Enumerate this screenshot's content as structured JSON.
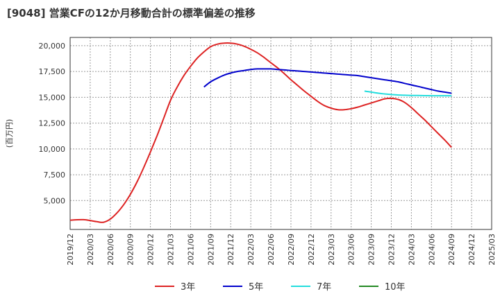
{
  "chart_data": {
    "type": "line",
    "title": "[9048]  営業CFの12か月移動合計の標準偏差の推移",
    "ylabel": "(百万円)",
    "xlabel": "",
    "ylim": [
      2200,
      20800
    ],
    "yticks": [
      5000,
      7500,
      10000,
      12500,
      15000,
      17500,
      20000
    ],
    "ytick_labels": [
      "5,000",
      "7,500",
      "10,000",
      "12,500",
      "15,000",
      "17,500",
      "20,000"
    ],
    "xticks": [
      "2019/12",
      "2020/03",
      "2020/06",
      "2020/09",
      "2020/12",
      "2021/03",
      "2021/06",
      "2021/09",
      "2021/12",
      "2022/03",
      "2022/06",
      "2022/09",
      "2022/12",
      "2023/03",
      "2023/06",
      "2023/09",
      "2023/12",
      "2024/03",
      "2024/06",
      "2024/09",
      "2024/12",
      "2025/03"
    ],
    "grid": true,
    "legend_position": "bottom",
    "series": [
      {
        "name": "3年",
        "color": "#dd2222",
        "points": [
          [
            "2019/12",
            3100
          ],
          [
            "2020/02",
            3150
          ],
          [
            "2020/04",
            2950
          ],
          [
            "2020/05",
            2900
          ],
          [
            "2020/06",
            3200
          ],
          [
            "2020/07",
            3800
          ],
          [
            "2020/08",
            4600
          ],
          [
            "2020/09",
            5600
          ],
          [
            "2020/10",
            6800
          ],
          [
            "2020/11",
            8200
          ],
          [
            "2020/12",
            9700
          ],
          [
            "2021/01",
            11300
          ],
          [
            "2021/02",
            13000
          ],
          [
            "2021/03",
            14700
          ],
          [
            "2021/04",
            16000
          ],
          [
            "2021/05",
            17100
          ],
          [
            "2021/06",
            18000
          ],
          [
            "2021/07",
            18800
          ],
          [
            "2021/08",
            19400
          ],
          [
            "2021/09",
            19900
          ],
          [
            "2021/10",
            20150
          ],
          [
            "2021/11",
            20250
          ],
          [
            "2021/12",
            20250
          ],
          [
            "2022/01",
            20150
          ],
          [
            "2022/02",
            19950
          ],
          [
            "2022/03",
            19650
          ],
          [
            "2022/04",
            19300
          ],
          [
            "2022/05",
            18850
          ],
          [
            "2022/06",
            18350
          ],
          [
            "2022/07",
            17850
          ],
          [
            "2022/08",
            17300
          ],
          [
            "2022/09",
            16700
          ],
          [
            "2022/10",
            16150
          ],
          [
            "2022/11",
            15600
          ],
          [
            "2022/12",
            15100
          ],
          [
            "2023/01",
            14600
          ],
          [
            "2023/02",
            14200
          ],
          [
            "2023/03",
            13950
          ],
          [
            "2023/04",
            13800
          ],
          [
            "2023/05",
            13800
          ],
          [
            "2023/06",
            13900
          ],
          [
            "2023/07",
            14050
          ],
          [
            "2023/08",
            14250
          ],
          [
            "2023/09",
            14450
          ],
          [
            "2023/10",
            14650
          ],
          [
            "2023/11",
            14850
          ],
          [
            "2023/12",
            14900
          ],
          [
            "2024/01",
            14800
          ],
          [
            "2024/02",
            14500
          ],
          [
            "2024/03",
            14000
          ],
          [
            "2024/04",
            13400
          ],
          [
            "2024/05",
            12800
          ],
          [
            "2024/06",
            12150
          ],
          [
            "2024/07",
            11500
          ],
          [
            "2024/08",
            10850
          ],
          [
            "2024/09",
            10150
          ]
        ]
      },
      {
        "name": "5年",
        "color": "#0000cc",
        "points": [
          [
            "2021/08",
            16000
          ],
          [
            "2021/09",
            16500
          ],
          [
            "2021/10",
            16850
          ],
          [
            "2021/11",
            17150
          ],
          [
            "2021/12",
            17350
          ],
          [
            "2022/01",
            17500
          ],
          [
            "2022/02",
            17600
          ],
          [
            "2022/03",
            17700
          ],
          [
            "2022/04",
            17750
          ],
          [
            "2022/05",
            17750
          ],
          [
            "2022/06",
            17750
          ],
          [
            "2022/07",
            17700
          ],
          [
            "2022/08",
            17650
          ],
          [
            "2022/09",
            17600
          ],
          [
            "2022/10",
            17550
          ],
          [
            "2022/11",
            17500
          ],
          [
            "2022/12",
            17450
          ],
          [
            "2023/01",
            17400
          ],
          [
            "2023/02",
            17350
          ],
          [
            "2023/03",
            17300
          ],
          [
            "2023/04",
            17250
          ],
          [
            "2023/05",
            17200
          ],
          [
            "2023/06",
            17150
          ],
          [
            "2023/07",
            17100
          ],
          [
            "2023/08",
            17000
          ],
          [
            "2023/09",
            16900
          ],
          [
            "2023/10",
            16800
          ],
          [
            "2023/11",
            16700
          ],
          [
            "2023/12",
            16600
          ],
          [
            "2024/01",
            16500
          ],
          [
            "2024/02",
            16350
          ],
          [
            "2024/03",
            16200
          ],
          [
            "2024/04",
            16050
          ],
          [
            "2024/05",
            15900
          ],
          [
            "2024/06",
            15750
          ],
          [
            "2024/07",
            15600
          ],
          [
            "2024/08",
            15500
          ],
          [
            "2024/09",
            15400
          ]
        ]
      },
      {
        "name": "7年",
        "color": "#22dddd",
        "points": [
          [
            "2023/08",
            15600
          ],
          [
            "2023/09",
            15500
          ],
          [
            "2023/10",
            15400
          ],
          [
            "2023/11",
            15330
          ],
          [
            "2023/12",
            15270
          ],
          [
            "2024/01",
            15230
          ],
          [
            "2024/02",
            15200
          ],
          [
            "2024/03",
            15180
          ],
          [
            "2024/04",
            15170
          ],
          [
            "2024/05",
            15160
          ],
          [
            "2024/06",
            15150
          ],
          [
            "2024/07",
            15150
          ],
          [
            "2024/08",
            15150
          ],
          [
            "2024/09",
            15150
          ]
        ]
      },
      {
        "name": "10年",
        "color": "#228822",
        "points": []
      }
    ]
  }
}
